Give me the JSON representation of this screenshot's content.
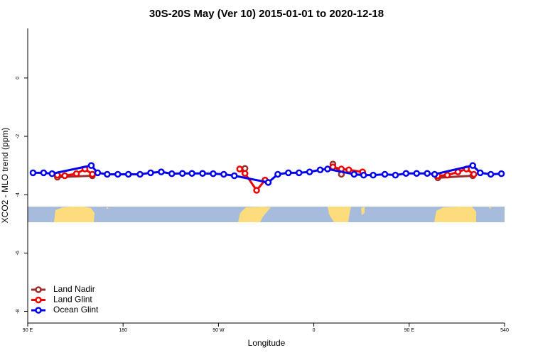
{
  "chart_data": {
    "type": "line",
    "title": "30S-20S May (Ver 10)   2015-01-01 to 2020-12-18",
    "xlabel": "Longitude",
    "ylabel": "XCO2 - MLO trend (ppm)",
    "xlim": [
      90,
      540
    ],
    "ylim": [
      -8.4,
      1.7
    ],
    "xticks": [
      {
        "value": 90,
        "label": "90 E"
      },
      180,
      {
        "value": 270,
        "label": "90 W"
      },
      {
        "value": 360,
        "label": "0"
      },
      {
        "value": 450,
        "label": "90 E"
      },
      540
    ],
    "yticks": [
      0,
      -2,
      -4,
      -6,
      -8
    ],
    "legend": "bottom-left",
    "series": [
      {
        "name": "Land Nadir",
        "color": "#9b2d2d",
        "x": [
          118,
          151,
          200,
          295,
          310,
          378,
          386,
          420,
          477,
          510
        ],
        "values": [
          -3.4,
          -3.35,
          null,
          -3.1,
          null,
          -2.95,
          -3.3,
          null,
          -3.42,
          -3.35
        ]
      },
      {
        "name": "Land Glint",
        "color": "#ee0000",
        "x": [
          118,
          125,
          136,
          144,
          151,
          200,
          290,
          295,
          306,
          314,
          340,
          378,
          386,
          393,
          406,
          440,
          477,
          486,
          496,
          504,
          511
        ],
        "values": [
          -3.33,
          -3.35,
          -3.28,
          -3.12,
          -3.3,
          null,
          -3.12,
          -3.27,
          -3.85,
          -3.5,
          null,
          -3.05,
          -3.12,
          -3.15,
          -3.22,
          null,
          -3.35,
          -3.33,
          -3.22,
          -3.12,
          -3.3
        ]
      },
      {
        "name": "Ocean Glint",
        "color": "#0000ee",
        "x": [
          95,
          105,
          113,
          150,
          156,
          165,
          175,
          185,
          196,
          206,
          216,
          226,
          236,
          245,
          255,
          265,
          275,
          285,
          317,
          326,
          336,
          346,
          356,
          366,
          373,
          398,
          407,
          416,
          427,
          437,
          447,
          457,
          467,
          474,
          510,
          517,
          527,
          537
        ],
        "values": [
          -3.25,
          -3.25,
          -3.28,
          -3.0,
          -3.25,
          -3.3,
          -3.3,
          -3.3,
          -3.3,
          -3.25,
          -3.22,
          -3.28,
          -3.27,
          -3.27,
          -3.27,
          -3.28,
          -3.3,
          -3.35,
          -3.58,
          -3.3,
          -3.25,
          -3.25,
          -3.22,
          -3.15,
          -3.12,
          -3.3,
          -3.33,
          -3.33,
          -3.3,
          -3.33,
          -3.27,
          -3.27,
          -3.27,
          -3.3,
          -3.0,
          -3.25,
          -3.3,
          -3.28
        ]
      }
    ]
  }
}
